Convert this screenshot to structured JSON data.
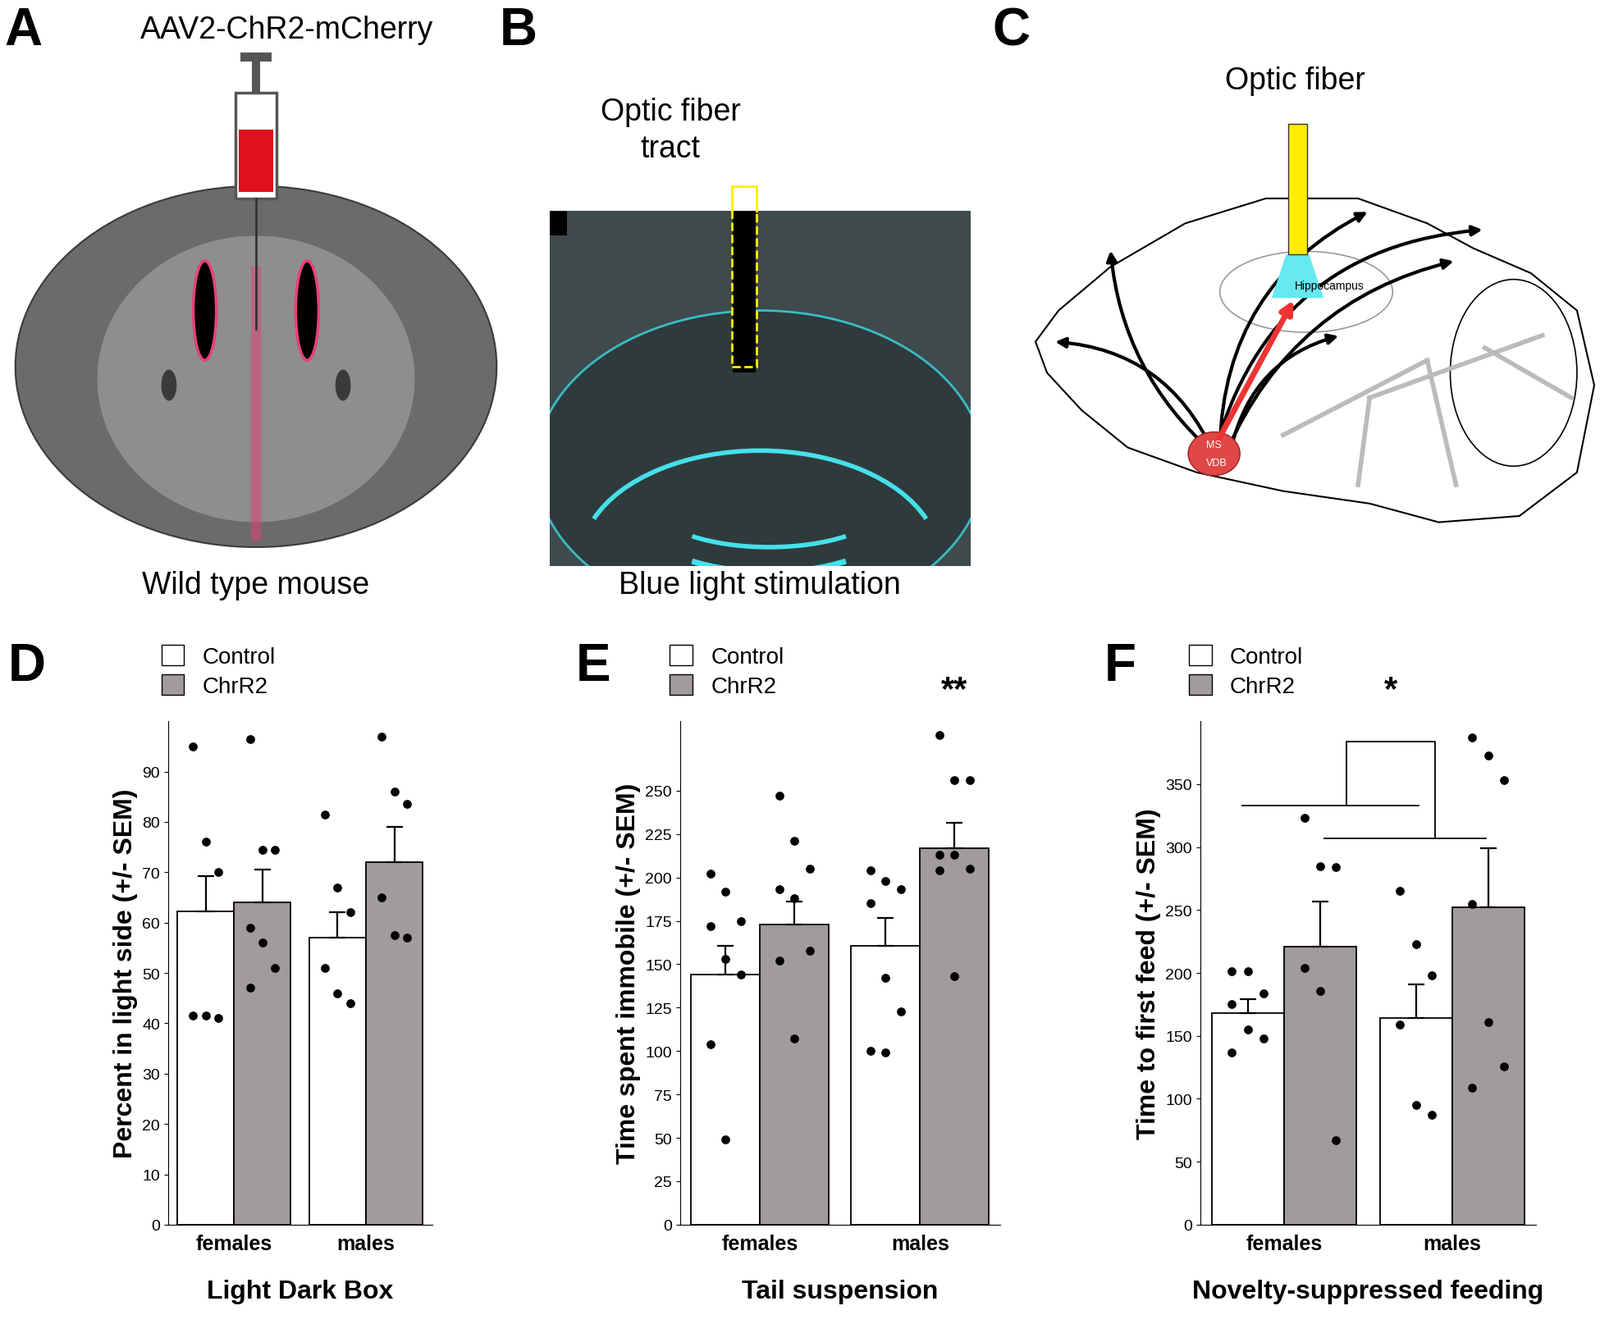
{
  "panels": [
    {
      "label": "A",
      "title": "AAV2-ChR2-mCherry",
      "caption": "Wild type mouse"
    },
    {
      "label": "B",
      "title": "Optic fiber\ntract",
      "caption": "Blue light stimulation"
    },
    {
      "label": "C",
      "title": "Optic fiber",
      "regions": [
        "Hippocampus",
        "MS",
        "VDB"
      ]
    }
  ],
  "chart_data": [
    {
      "type": "bar",
      "panel_label": "D",
      "xlabel": "Light Dark Box",
      "ylabel": "Percent in light side (+/- SEM)",
      "categories": [
        "females",
        "males"
      ],
      "ylim": [
        0,
        100
      ],
      "yticks": [
        0,
        10,
        20,
        30,
        40,
        50,
        60,
        70,
        80,
        90
      ],
      "legend": "upper left",
      "series": [
        {
          "name": "Control",
          "color": "#ffffff",
          "values": [
            62.3,
            57
          ],
          "errors": [
            7,
            5
          ],
          "points": [
            [
              95,
              76,
              70,
              41.5,
              41.5,
              41
            ],
            [
              81.5,
              67,
              62,
              51,
              46,
              44
            ]
          ]
        },
        {
          "name": "ChrR2",
          "color": "#a19b9b",
          "values": [
            64,
            72
          ],
          "errors": [
            6.5,
            7
          ],
          "points": [
            [
              96.5,
              74.5,
              74.5,
              59,
              56,
              51,
              47
            ],
            [
              97,
              86,
              83.5,
              65,
              57.5,
              57
            ]
          ]
        }
      ]
    },
    {
      "type": "bar",
      "panel_label": "E",
      "xlabel": "Tail suspension",
      "ylabel": "Time spent immobile (+/- SEM)",
      "categories": [
        "females",
        "males"
      ],
      "ylim": [
        0,
        290
      ],
      "yticks": [
        0,
        25,
        50,
        75,
        100,
        125,
        150,
        175,
        200,
        225,
        250
      ],
      "legend": "upper left",
      "series": [
        {
          "name": "Control",
          "color": "#ffffff",
          "values": [
            144,
            160.5
          ],
          "errors": [
            16.5,
            16
          ],
          "points": [
            [
              202,
              192,
              175,
              172,
              153,
              144,
              104,
              49
            ],
            [
              204,
              198,
              193,
              185,
              142,
              123,
              100,
              99
            ]
          ]
        },
        {
          "name": "ChrR2",
          "color": "#a19b9b",
          "values": [
            173,
            217
          ],
          "errors": [
            13,
            14.5
          ],
          "points": [
            [
              247,
              221,
              205,
              193,
              188,
              158,
              152,
              107
            ],
            [
              282,
              256,
              256,
              213,
              213,
              205,
              204,
              143
            ]
          ]
        }
      ],
      "annotations": [
        {
          "text": "**",
          "category": "males"
        }
      ]
    },
    {
      "type": "bar",
      "panel_label": "F",
      "xlabel": "Novelty-suppressed feeding",
      "ylabel": "Time to first feed (+/- SEM)",
      "categories": [
        "females",
        "males"
      ],
      "ylim": [
        0,
        400
      ],
      "yticks": [
        0,
        50,
        100,
        150,
        200,
        250,
        300,
        350
      ],
      "legend": "upper left",
      "series": [
        {
          "name": "Control",
          "color": "#ffffff",
          "values": [
            168,
            164
          ],
          "errors": [
            11,
            27
          ],
          "points": [
            [
              201,
              201,
              184,
              175,
              155,
              148,
              137
            ],
            [
              265,
              223,
              198,
              159,
              95,
              87
            ]
          ]
        },
        {
          "name": "ChrR2",
          "color": "#a19b9b",
          "values": [
            221,
            252
          ],
          "errors": [
            36,
            47
          ],
          "points": [
            [
              323,
              285,
              284,
              204,
              186,
              67
            ],
            [
              387,
              373,
              353,
              255,
              161,
              126,
              109
            ]
          ]
        }
      ],
      "annotations": [
        {
          "text": "*",
          "between": [
            "females",
            "males"
          ]
        }
      ]
    }
  ]
}
